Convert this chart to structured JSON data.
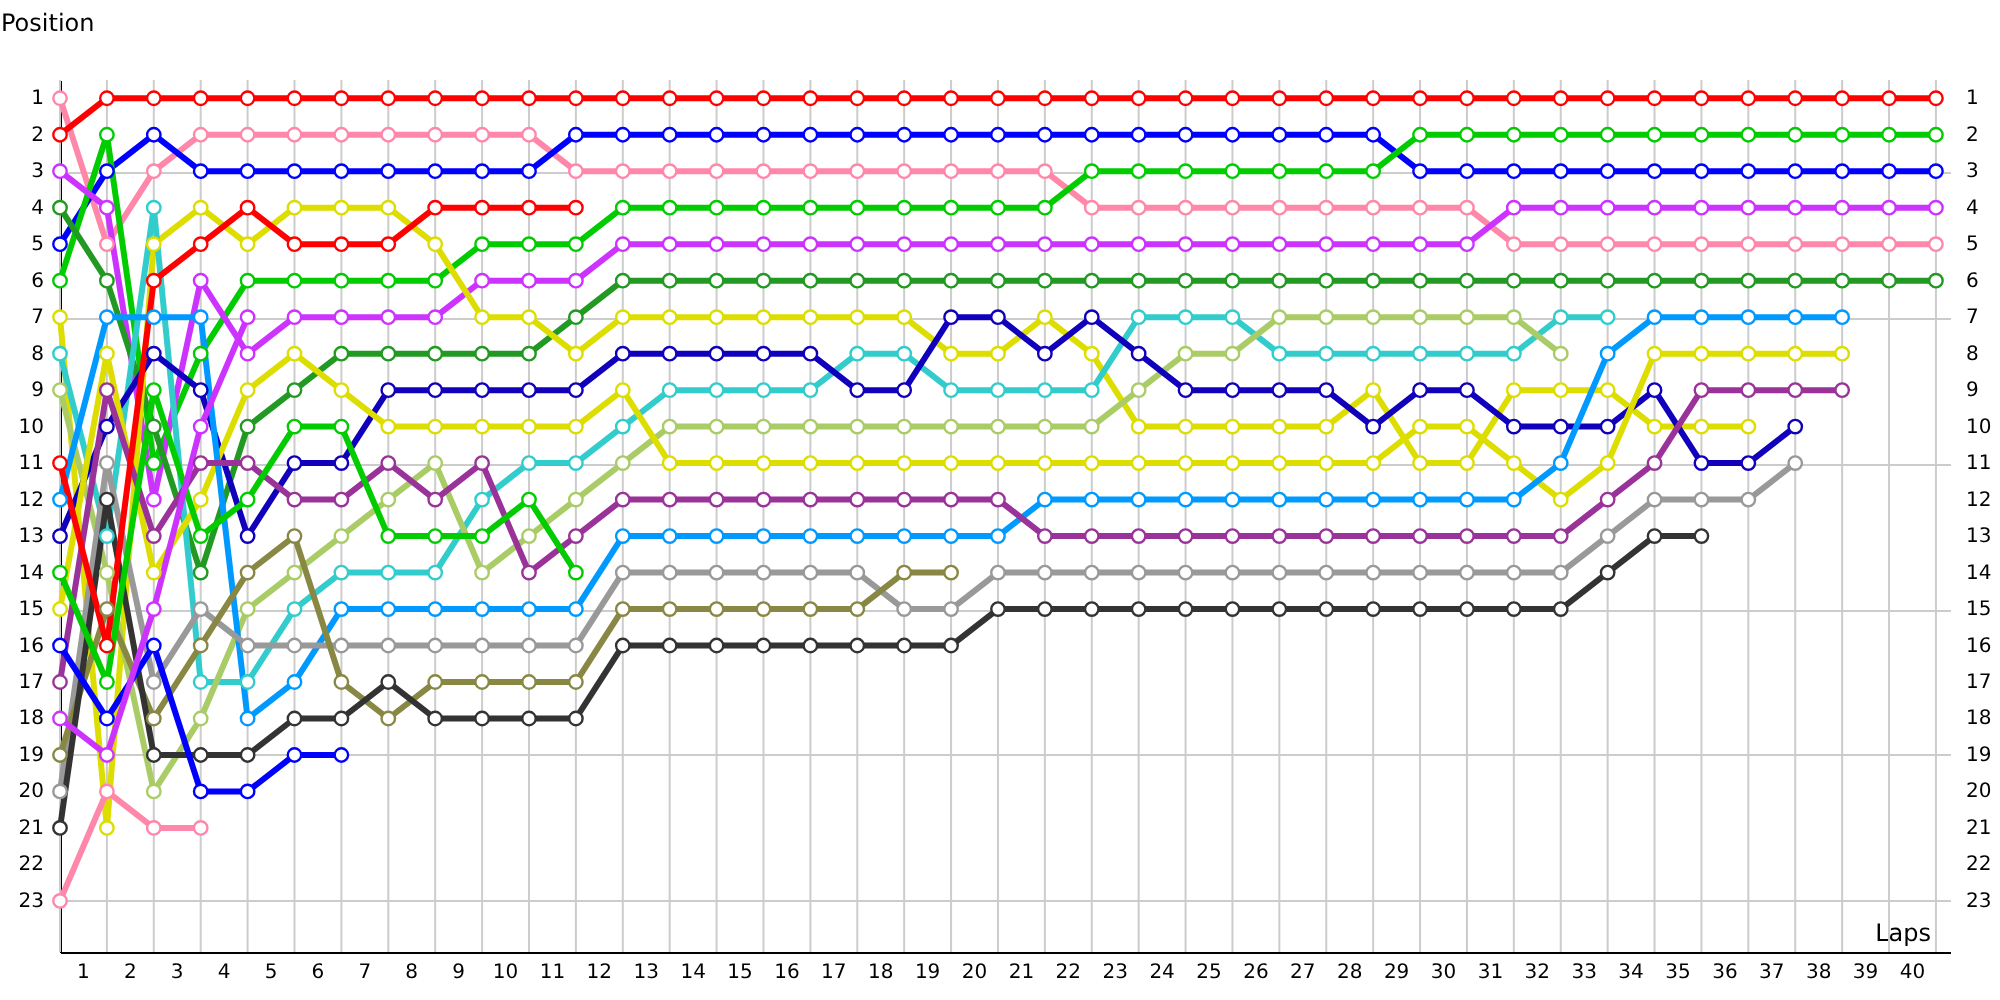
{
  "chart_data": {
    "type": "line",
    "xlabel": "Laps",
    "ylabel": "Position",
    "x": [
      0,
      1,
      2,
      3,
      4,
      5,
      6,
      7,
      8,
      9,
      10,
      11,
      12,
      13,
      14,
      15,
      16,
      17,
      18,
      19,
      20,
      21,
      22,
      23,
      24,
      25,
      26,
      27,
      28,
      29,
      30,
      31,
      32,
      33,
      34,
      35,
      36,
      37,
      38,
      39,
      40
    ],
    "xlim": [
      0,
      40.3
    ],
    "xticks": [
      {
        "value": 0,
        "label": null
      },
      {
        "value": 0.5,
        "label": "1"
      },
      {
        "value": 1,
        "label": null
      },
      {
        "value": 1.5,
        "label": "2"
      },
      {
        "value": 2,
        "label": null
      },
      {
        "value": 2.5,
        "label": "3"
      },
      {
        "value": 3,
        "label": null
      },
      {
        "value": 3.5,
        "label": "4"
      },
      {
        "value": 4,
        "label": null
      },
      {
        "value": 4.5,
        "label": "5"
      },
      {
        "value": 5,
        "label": null
      },
      {
        "value": 5.5,
        "label": "6"
      },
      {
        "value": 6,
        "label": null
      },
      {
        "value": 6.5,
        "label": "7"
      },
      {
        "value": 7,
        "label": null
      },
      {
        "value": 7.5,
        "label": "8"
      },
      {
        "value": 8,
        "label": null
      },
      {
        "value": 8.5,
        "label": "9"
      },
      {
        "value": 9,
        "label": null
      },
      {
        "value": 9.5,
        "label": "10"
      },
      {
        "value": 10,
        "label": null
      },
      {
        "value": 10.5,
        "label": "11"
      },
      {
        "value": 11,
        "label": null
      },
      {
        "value": 11.5,
        "label": "12"
      },
      {
        "value": 12,
        "label": null
      },
      {
        "value": 12.5,
        "label": "13"
      },
      {
        "value": 13,
        "label": null
      },
      {
        "value": 13.5,
        "label": "14"
      },
      {
        "value": 14,
        "label": null
      },
      {
        "value": 14.5,
        "label": "15"
      },
      {
        "value": 15,
        "label": null
      },
      {
        "value": 15.5,
        "label": "16"
      },
      {
        "value": 16,
        "label": null
      },
      {
        "value": 16.5,
        "label": "17"
      },
      {
        "value": 17,
        "label": null
      },
      {
        "value": 17.5,
        "label": "18"
      },
      {
        "value": 18,
        "label": null
      },
      {
        "value": 18.5,
        "label": "19"
      },
      {
        "value": 19,
        "label": null
      },
      {
        "value": 19.5,
        "label": "20"
      },
      {
        "value": 20,
        "label": null
      },
      {
        "value": 20.5,
        "label": "21"
      },
      {
        "value": 21,
        "label": null
      },
      {
        "value": 21.5,
        "label": "22"
      },
      {
        "value": 22,
        "label": null
      },
      {
        "value": 22.5,
        "label": "23"
      },
      {
        "value": 23,
        "label": null
      },
      {
        "value": 23.5,
        "label": "24"
      },
      {
        "value": 24,
        "label": null
      },
      {
        "value": 24.5,
        "label": "25"
      },
      {
        "value": 25,
        "label": null
      },
      {
        "value": 25.5,
        "label": "26"
      },
      {
        "value": 26,
        "label": null
      },
      {
        "value": 26.5,
        "label": "27"
      },
      {
        "value": 27,
        "label": null
      },
      {
        "value": 27.5,
        "label": "28"
      },
      {
        "value": 28,
        "label": null
      },
      {
        "value": 28.5,
        "label": "29"
      },
      {
        "value": 29,
        "label": null
      },
      {
        "value": 29.5,
        "label": "30"
      },
      {
        "value": 30,
        "label": null
      },
      {
        "value": 30.5,
        "label": "31"
      },
      {
        "value": 31,
        "label": null
      },
      {
        "value": 31.5,
        "label": "32"
      },
      {
        "value": 32,
        "label": null
      },
      {
        "value": 32.5,
        "label": "33"
      },
      {
        "value": 33,
        "label": null
      },
      {
        "value": 33.5,
        "label": "34"
      },
      {
        "value": 34,
        "label": null
      },
      {
        "value": 34.5,
        "label": "35"
      },
      {
        "value": 35,
        "label": null
      },
      {
        "value": 35.5,
        "label": "36"
      },
      {
        "value": 36,
        "label": null
      },
      {
        "value": 36.5,
        "label": "37"
      },
      {
        "value": 37,
        "label": null
      },
      {
        "value": 37.5,
        "label": "38"
      },
      {
        "value": 38,
        "label": null
      },
      {
        "value": 38.5,
        "label": "39"
      },
      {
        "value": 39,
        "label": null
      },
      {
        "value": 39.5,
        "label": "40"
      },
      {
        "value": 40,
        "label": null
      }
    ],
    "ylim": [
      24.4,
      0.5
    ],
    "yticks": [
      1,
      2,
      3,
      4,
      5,
      6,
      7,
      8,
      9,
      10,
      11,
      12,
      13,
      14,
      15,
      16,
      17,
      18,
      19,
      20,
      21,
      22,
      23
    ],
    "y2lim": [
      24.4,
      0.5
    ],
    "y2ticks": [
      1,
      2,
      3,
      4,
      5,
      6,
      7,
      8,
      9,
      10,
      11,
      12,
      13,
      14,
      15,
      16,
      17,
      18,
      19,
      20,
      21,
      22,
      23
    ],
    "grid": true,
    "marker": "circle",
    "line_style": "solid",
    "series": [
      {
        "color": "#ff88aa",
        "values": [
          1,
          5,
          3,
          2,
          2,
          2,
          2,
          2,
          2,
          2,
          2,
          3,
          3,
          3,
          3,
          3,
          3,
          3,
          3,
          3,
          3,
          3,
          4,
          4,
          4,
          4,
          4,
          4,
          4,
          4,
          4,
          5,
          5,
          5,
          5,
          5,
          5,
          5,
          5,
          5,
          5
        ]
      },
      {
        "color": "#0000ff",
        "values": [
          5,
          3,
          2,
          3,
          3,
          3,
          3,
          3,
          3,
          3,
          3,
          2,
          2,
          2,
          2,
          2,
          2,
          2,
          2,
          2,
          2,
          2,
          2,
          2,
          2,
          2,
          2,
          2,
          2,
          3,
          3,
          3,
          3,
          3,
          3,
          3,
          3,
          3,
          3,
          3,
          3
        ]
      },
      {
        "color": "#00cc00",
        "values": [
          6,
          2,
          11,
          8,
          6,
          6,
          6,
          6,
          6,
          5,
          5,
          5,
          4,
          4,
          4,
          4,
          4,
          4,
          4,
          4,
          4,
          4,
          3,
          3,
          3,
          3,
          3,
          3,
          3,
          2,
          2,
          2,
          2,
          2,
          2,
          2,
          2,
          2,
          2,
          2,
          2
        ]
      },
      {
        "color": "#cc33ff",
        "values": [
          3,
          4,
          12,
          6,
          8,
          7,
          7,
          7,
          7,
          6,
          6,
          6,
          5,
          5,
          5,
          5,
          5,
          5,
          5,
          5,
          5,
          5,
          5,
          5,
          5,
          5,
          5,
          5,
          5,
          5,
          5,
          4,
          4,
          4,
          4,
          4,
          4,
          4,
          4,
          4,
          4
        ]
      },
      {
        "color": "#229922",
        "values": [
          4,
          6,
          10,
          14,
          10,
          9,
          8,
          8,
          8,
          8,
          8,
          7,
          6,
          6,
          6,
          6,
          6,
          6,
          6,
          6,
          6,
          6,
          6,
          6,
          6,
          6,
          6,
          6,
          6,
          6,
          6,
          6,
          6,
          6,
          6,
          6,
          6,
          6,
          6,
          6,
          6
        ]
      },
      {
        "color": "#dddd00",
        "values": [
          7,
          21,
          5,
          4,
          5,
          4,
          4,
          4,
          5,
          7,
          7,
          8,
          7,
          7,
          7,
          7,
          7,
          7,
          7,
          8,
          8,
          7,
          8,
          10,
          10,
          10,
          10,
          10,
          9,
          11,
          11,
          9,
          9,
          9,
          10,
          10,
          10,
          null,
          null,
          null,
          null
        ]
      },
      {
        "color": "#33cccc",
        "values": [
          8,
          13,
          4,
          17,
          17,
          15,
          14,
          14,
          14,
          12,
          11,
          11,
          10,
          9,
          9,
          9,
          9,
          8,
          8,
          9,
          9,
          9,
          9,
          7,
          7,
          7,
          8,
          8,
          8,
          8,
          8,
          8,
          7,
          7,
          null,
          null,
          null,
          null,
          null,
          null,
          null
        ]
      },
      {
        "color": "#aacc66",
        "values": [
          9,
          14,
          20,
          18,
          15,
          14,
          13,
          12,
          11,
          14,
          13,
          12,
          11,
          10,
          10,
          10,
          10,
          10,
          10,
          10,
          10,
          10,
          10,
          9,
          8,
          8,
          7,
          7,
          7,
          7,
          7,
          7,
          8,
          null,
          null,
          null,
          null,
          null,
          null,
          null,
          null
        ]
      },
      {
        "color": "#1100bb",
        "values": [
          13,
          10,
          8,
          9,
          13,
          11,
          11,
          9,
          9,
          9,
          9,
          9,
          8,
          8,
          8,
          8,
          8,
          9,
          9,
          7,
          7,
          8,
          7,
          8,
          9,
          9,
          9,
          9,
          10,
          9,
          9,
          10,
          10,
          10,
          9,
          11,
          11,
          10,
          null,
          null,
          null
        ]
      },
      {
        "color": "#dddd00",
        "values": [
          15,
          8,
          14,
          12,
          9,
          8,
          9,
          10,
          10,
          10,
          10,
          10,
          9,
          11,
          11,
          11,
          11,
          11,
          11,
          11,
          11,
          11,
          11,
          11,
          11,
          11,
          11,
          11,
          11,
          10,
          10,
          11,
          12,
          11,
          8,
          8,
          8,
          8,
          8,
          null,
          null
        ]
      },
      {
        "color": "#0099ff",
        "values": [
          12,
          7,
          7,
          7,
          18,
          17,
          15,
          15,
          15,
          15,
          15,
          15,
          13,
          13,
          13,
          13,
          13,
          13,
          13,
          13,
          13,
          12,
          12,
          12,
          12,
          12,
          12,
          12,
          12,
          12,
          12,
          12,
          11,
          8,
          7,
          7,
          7,
          7,
          7,
          null,
          null
        ]
      },
      {
        "color": "#993399",
        "values": [
          17,
          9,
          13,
          11,
          11,
          12,
          12,
          11,
          12,
          11,
          14,
          13,
          12,
          12,
          12,
          12,
          12,
          12,
          12,
          12,
          12,
          13,
          13,
          13,
          13,
          13,
          13,
          13,
          13,
          13,
          13,
          13,
          13,
          12,
          11,
          9,
          9,
          9,
          9,
          null,
          null
        ]
      },
      {
        "color": "#999999",
        "values": [
          20,
          11,
          17,
          15,
          16,
          16,
          16,
          16,
          16,
          16,
          16,
          16,
          14,
          14,
          14,
          14,
          14,
          14,
          15,
          15,
          14,
          14,
          14,
          14,
          14,
          14,
          14,
          14,
          14,
          14,
          14,
          14,
          14,
          13,
          12,
          12,
          12,
          11,
          null,
          null,
          null
        ]
      },
      {
        "color": "#888844",
        "values": [
          19,
          15,
          18,
          16,
          14,
          13,
          17,
          18,
          17,
          17,
          17,
          17,
          15,
          15,
          15,
          15,
          15,
          15,
          14,
          14,
          null,
          null,
          null,
          null,
          null,
          null,
          null,
          null,
          null,
          null,
          null,
          null,
          null,
          null,
          null,
          null,
          null,
          null,
          null,
          null,
          null
        ]
      },
      {
        "color": "#333333",
        "values": [
          21,
          12,
          19,
          19,
          19,
          18,
          18,
          17,
          18,
          18,
          18,
          18,
          16,
          16,
          16,
          16,
          16,
          16,
          16,
          16,
          15,
          15,
          15,
          15,
          15,
          15,
          15,
          15,
          15,
          15,
          15,
          15,
          15,
          14,
          13,
          13,
          null,
          null,
          null,
          null,
          null
        ]
      },
      {
        "color": "#ff0000",
        "values": [
          11,
          16,
          6,
          5,
          4,
          5,
          5,
          5,
          4,
          4,
          4,
          4,
          null,
          null,
          null,
          null,
          null,
          null,
          null,
          null,
          null,
          null,
          null,
          null,
          null,
          null,
          null,
          null,
          null,
          null,
          null,
          null,
          null,
          null,
          null,
          null,
          null,
          null,
          null,
          null,
          null
        ]
      },
      {
        "color": "#00cc00",
        "values": [
          14,
          17,
          9,
          13,
          12,
          10,
          10,
          13,
          13,
          13,
          12,
          14,
          null,
          null,
          null,
          null,
          null,
          null,
          null,
          null,
          null,
          null,
          null,
          null,
          null,
          null,
          null,
          null,
          null,
          null,
          null,
          null,
          null,
          null,
          null,
          null,
          null,
          null,
          null,
          null,
          null
        ]
      },
      {
        "color": "#0000ff",
        "values": [
          16,
          18,
          16,
          20,
          20,
          19,
          19,
          null,
          null,
          null,
          null,
          null,
          null,
          null,
          null,
          null,
          null,
          null,
          null,
          null,
          null,
          null,
          null,
          null,
          null,
          null,
          null,
          null,
          null,
          null,
          null,
          null,
          null,
          null,
          null,
          null,
          null,
          null,
          null,
          null,
          null
        ]
      },
      {
        "color": "#cc33ff",
        "values": [
          18,
          19,
          15,
          10,
          7,
          null,
          null,
          null,
          null,
          null,
          null,
          null,
          null,
          null,
          null,
          null,
          null,
          null,
          null,
          null,
          null,
          null,
          null,
          null,
          null,
          null,
          null,
          null,
          null,
          null,
          null,
          null,
          null,
          null,
          null,
          null,
          null,
          null,
          null,
          null,
          null
        ]
      },
      {
        "color": "#ff88aa",
        "values": [
          23,
          20,
          21,
          21,
          null,
          null,
          null,
          null,
          null,
          null,
          null,
          null,
          null,
          null,
          null,
          null,
          null,
          null,
          null,
          null,
          null,
          null,
          null,
          null,
          null,
          null,
          null,
          null,
          null,
          null,
          null,
          null,
          null,
          null,
          null,
          null,
          null,
          null,
          null,
          null,
          null
        ]
      },
      {
        "color": "#ff0000",
        "values": [
          2,
          1,
          1,
          1,
          1,
          1,
          1,
          1,
          1,
          1,
          1,
          1,
          1,
          1,
          1,
          1,
          1,
          1,
          1,
          1,
          1,
          1,
          1,
          1,
          1,
          1,
          1,
          1,
          1,
          1,
          1,
          1,
          1,
          1,
          1,
          1,
          1,
          1,
          1,
          1,
          1
        ]
      }
    ]
  }
}
